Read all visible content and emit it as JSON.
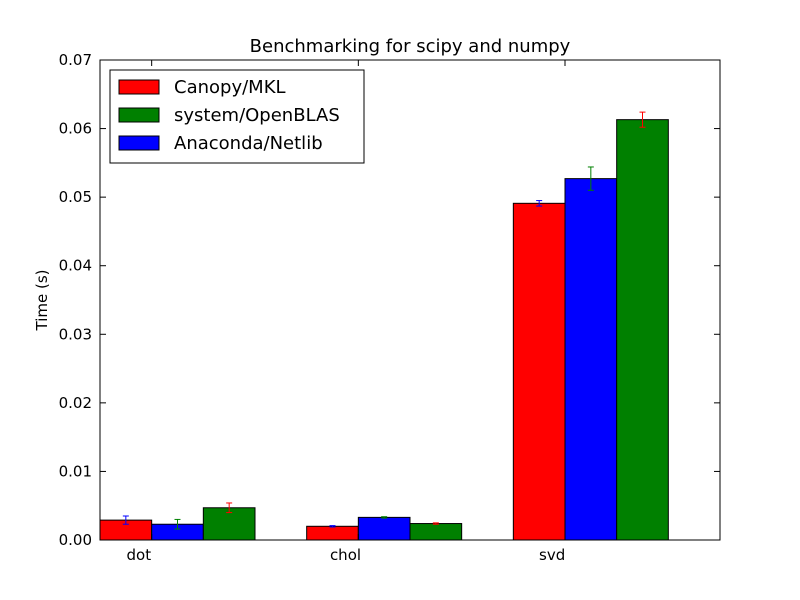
{
  "chart_data": {
    "type": "bar",
    "title": "Benchmarking for scipy and numpy",
    "xlabel": "",
    "ylabel": "Time (s)",
    "ylim": [
      0,
      0.07
    ],
    "yticks": [
      0.0,
      0.01,
      0.02,
      0.03,
      0.04,
      0.05,
      0.06,
      0.07
    ],
    "ytick_labels": [
      "0.00",
      "0.01",
      "0.02",
      "0.03",
      "0.04",
      "0.05",
      "0.06",
      "0.07"
    ],
    "categories": [
      "dot",
      "chol",
      "svd"
    ],
    "legend_position": "top-left",
    "grid": false,
    "series": [
      {
        "name": "Canopy/MKL",
        "color": "#ff0000",
        "values": [
          0.0029,
          0.002,
          0.0491
        ],
        "errors": [
          0.0006,
          0.0001,
          0.0004
        ]
      },
      {
        "name": "system/OpenBLAS",
        "color": "#008000",
        "values": [
          0.0047,
          0.0024,
          0.0613
        ],
        "errors": [
          0.0007,
          0.0001,
          0.0011
        ]
      },
      {
        "name": "Anaconda/Netlib",
        "color": "#0000ff",
        "values": [
          0.0023,
          0.0033,
          0.0527
        ],
        "errors": [
          0.0007,
          0.0001,
          0.0017
        ]
      }
    ],
    "bar_order": [
      [
        "Canopy/MKL",
        "Anaconda/Netlib",
        "system/OpenBLAS"
      ],
      [
        "Canopy/MKL",
        "Anaconda/Netlib",
        "system/OpenBLAS"
      ],
      [
        "Canopy/MKL",
        "Anaconda/Netlib",
        "system/OpenBLAS"
      ]
    ]
  }
}
